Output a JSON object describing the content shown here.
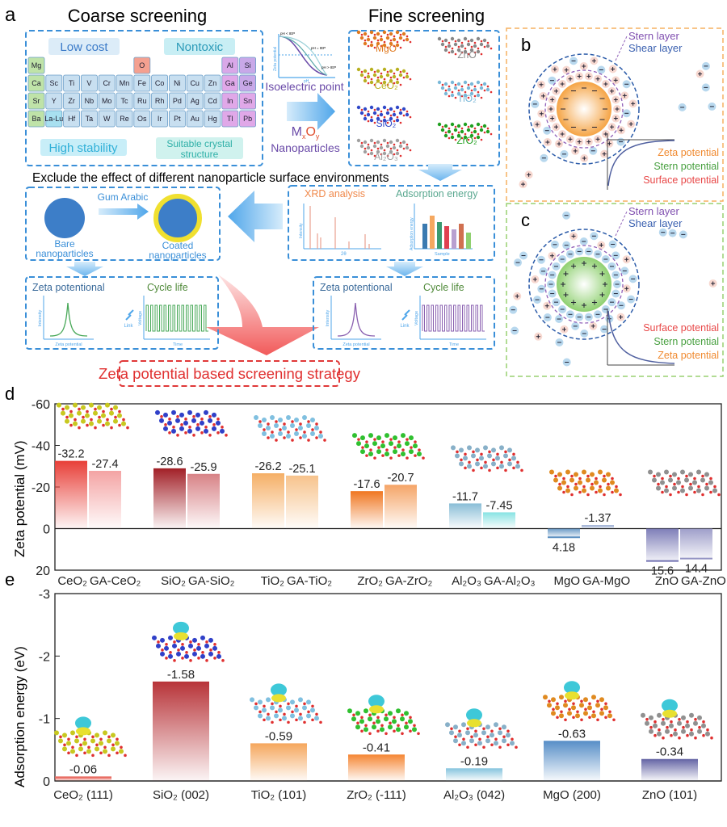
{
  "panel_labels": {
    "a": "a",
    "b": "b",
    "c": "c",
    "d": "d",
    "e": "e"
  },
  "panel_a": {
    "coarse_title": "Coarse screening",
    "fine_title": "Fine screening",
    "criteria": {
      "low_cost": "Low cost",
      "nontoxic": "Nontoxic",
      "high_stability": "High stability",
      "crystal_1": "Suitable crystal",
      "crystal_2": "structure"
    },
    "periodic_table": [
      [
        {
          "s": "Mg",
          "c": "#bfe3a8"
        },
        null,
        null,
        null,
        null,
        null,
        {
          "s": "O",
          "c": "#f4a090"
        },
        null,
        null,
        null,
        null,
        {
          "s": "Al",
          "c": "#d9a8e8"
        },
        {
          "s": "Si",
          "c": "#c8a8e8"
        }
      ],
      [
        {
          "s": "Ca",
          "c": "#bfe3a8"
        },
        {
          "s": "Sc",
          "c": "#c8dff0"
        },
        {
          "s": "Ti",
          "c": "#c8dff0"
        },
        {
          "s": "V",
          "c": "#c8dff0"
        },
        {
          "s": "Cr",
          "c": "#c8dff0"
        },
        {
          "s": "Mn",
          "c": "#c8dff0"
        },
        {
          "s": "Fe",
          "c": "#c8dff0"
        },
        {
          "s": "Co",
          "c": "#c8dff0"
        },
        {
          "s": "Ni",
          "c": "#c8dff0"
        },
        {
          "s": "Cu",
          "c": "#c8dff0"
        },
        {
          "s": "Zn",
          "c": "#c8dff0"
        },
        {
          "s": "Ga",
          "c": "#e0a8e8"
        },
        {
          "s": "Ge",
          "c": "#c8a8e8"
        }
      ],
      [
        {
          "s": "Sr",
          "c": "#bfe3a8"
        },
        {
          "s": "Y",
          "c": "#c8dff0"
        },
        {
          "s": "Zr",
          "c": "#c8dff0"
        },
        {
          "s": "Nb",
          "c": "#c8dff0"
        },
        {
          "s": "Mo",
          "c": "#c8dff0"
        },
        {
          "s": "Tc",
          "c": "#c8dff0"
        },
        {
          "s": "Ru",
          "c": "#c8dff0"
        },
        {
          "s": "Rh",
          "c": "#c8dff0"
        },
        {
          "s": "Pd",
          "c": "#c8dff0"
        },
        {
          "s": "Ag",
          "c": "#c8dff0"
        },
        {
          "s": "Cd",
          "c": "#c8dff0"
        },
        {
          "s": "In",
          "c": "#e0a8e8"
        },
        {
          "s": "Sn",
          "c": "#e0a8e8"
        }
      ],
      [
        {
          "s": "Ba",
          "c": "#bfe3a8"
        },
        {
          "s": "La-Lu",
          "c": "#a8e0f0"
        },
        {
          "s": "Hf",
          "c": "#c8dff0"
        },
        {
          "s": "Ta",
          "c": "#c8dff0"
        },
        {
          "s": "W",
          "c": "#c8dff0"
        },
        {
          "s": "Re",
          "c": "#c8dff0"
        },
        {
          "s": "Os",
          "c": "#c8dff0"
        },
        {
          "s": "Ir",
          "c": "#c8dff0"
        },
        {
          "s": "Pt",
          "c": "#c8dff0"
        },
        {
          "s": "Au",
          "c": "#c8dff0"
        },
        {
          "s": "Hg",
          "c": "#c8dff0"
        },
        {
          "s": "Tl",
          "c": "#e0a8e8"
        },
        {
          "s": "Pb",
          "c": "#e0a8e8"
        }
      ]
    ],
    "iep_chart": {
      "ylabel": "Zeta potential",
      "xlabel": "pH",
      "curves": [
        "pH < IEP",
        "pH = IEP",
        "pH > IEP"
      ]
    },
    "isoelectric_point": "Isoelectric point",
    "mxoy": {
      "M": "M",
      "x": "x",
      "O": "O",
      "y": "y"
    },
    "nanoparticles": "Nanoparticles",
    "fine_materials": [
      {
        "name": "MgO",
        "color": "#e07a20"
      },
      {
        "name": "ZnO",
        "color": "#888888"
      },
      {
        "name": "CeO₂",
        "color": "#b8b020"
      },
      {
        "name": "TiO₂",
        "color": "#7ab8d8"
      },
      {
        "name": "SiO₂",
        "color": "#3048c8"
      },
      {
        "name": "ZrO₂",
        "color": "#20a020"
      },
      {
        "name": "Al₂O₃",
        "color": "#a0a0a0"
      }
    ],
    "banner": "Exclude the effect of different nanoparticle surface environments",
    "gum_arabic": "Gum Arabic",
    "bare_1": "Bare",
    "bare_2": "nanoparticles",
    "coated_1": "Coated",
    "coated_2": "nanoparticles",
    "xrd_title": "XRD analysis",
    "xrd_xlabel": "2θ",
    "xrd_ylabel": "Intensity",
    "ads_title": "Adsorption energy",
    "ads_xlabel": "Sample",
    "ads_ylabel": "Adsorption energy",
    "zeta_title": "Zeta potentional",
    "zeta_xlabel": "Zeta potential",
    "zeta_ylabel": "Intensity",
    "cycle_title": "Cycle life",
    "cycle_xlabel": "Time",
    "cycle_ylabel": "Voltage",
    "link": "Link",
    "strategy": "Zeta potential based screening strategy"
  },
  "panel_b": {
    "stern": "Stern layer",
    "shear": "Shear layer",
    "p1": "Zeta potential",
    "p2": "Stern potential",
    "p3": "Surface potential",
    "core_color": "#f5a445"
  },
  "panel_c": {
    "stern": "Stern layer",
    "shear": "Shear layer",
    "p1": "Surface potential",
    "p2": "Stern potential",
    "p3": "Zeta potential",
    "core_color": "#8fd070"
  },
  "chart_data": [
    {
      "type": "bar",
      "panel": "d",
      "ylabel": "Zeta potential (mV)",
      "ylim": [
        20,
        -60
      ],
      "yticks": [
        -60,
        -40,
        -20,
        0,
        20
      ],
      "y_axis_inverted": true,
      "categories": [
        "CeO₂",
        "GA-CeO₂",
        "SiO₂",
        "GA-SiO₂",
        "TiO₂",
        "GA-TiO₂",
        "ZrO₂",
        "GA-ZrO₂",
        "Al₂O₃",
        "GA-Al₂O₃",
        "MgO",
        "GA-MgO",
        "ZnO",
        "GA-ZnO"
      ],
      "values": [
        -32.2,
        -27.4,
        -28.6,
        -25.9,
        -26.2,
        -25.1,
        -17.6,
        -20.7,
        -11.7,
        -7.45,
        4.18,
        -1.37,
        15.6,
        14.4
      ],
      "labels": [
        "-32.2",
        "-27.4",
        "-28.6",
        "-25.9",
        "-26.2",
        "-25.1",
        "-17.6",
        "-20.7",
        "-11.7",
        "-7.45",
        "4.18",
        "-1.37",
        "15.6",
        "14.4"
      ],
      "colors": [
        "#e8413a",
        "#f4a5a5",
        "#a3232a",
        "#d88488",
        "#f5b068",
        "#f7c48e",
        "#f07a26",
        "#f5a66a",
        "#8ec0d8",
        "#8ee4e4",
        "#5b8fc0",
        "#a8b8d8",
        "#7070b0",
        "#9494c4"
      ],
      "grid": false
    },
    {
      "type": "bar",
      "panel": "e",
      "ylabel": "Adsorption energy (eV)",
      "ylim": [
        0,
        -3
      ],
      "yticks": [
        -3,
        -2,
        -1,
        0
      ],
      "y_axis_inverted": true,
      "categories": [
        "CeO₂ (111)",
        "SiO₂ (002)",
        "TiO₂ (101)",
        "ZrO₂ (-111)",
        "Al₂O₃ (042)",
        "MgO (200)",
        "ZnO (101)"
      ],
      "values": [
        -0.06,
        -1.58,
        -0.59,
        -0.41,
        -0.19,
        -0.63,
        -0.34
      ],
      "labels": [
        "-0.06",
        "-1.58",
        "-0.59",
        "-0.41",
        "-0.19",
        "-0.63",
        "-0.34"
      ],
      "colors": [
        "#e86a60",
        "#b8353a",
        "#f5a860",
        "#f58a3a",
        "#8ec8e0",
        "#5a90c8",
        "#6a6aa8"
      ],
      "grid": false
    }
  ]
}
